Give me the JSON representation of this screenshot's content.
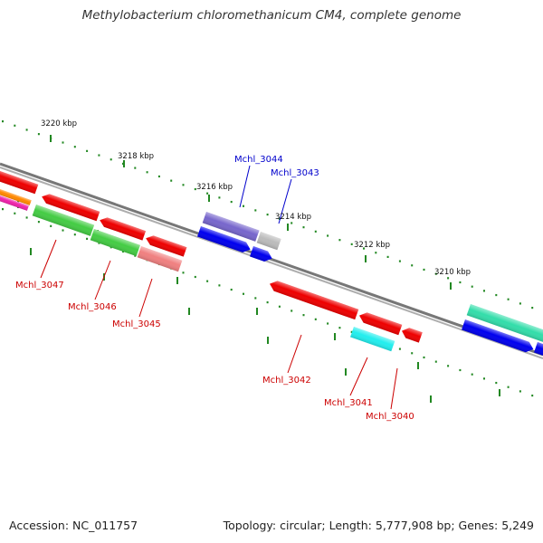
{
  "title": "Methylobacterium chloromethanicum CM4, complete genome",
  "footer": {
    "accession": "Accession: NC_011757",
    "summary": "Topology: circular; Length: 5,777,908 bp; Genes: 5,249"
  },
  "colors": {
    "backbone": "#777777",
    "tick": "#228822",
    "label_forward": "#0000cc",
    "label_reverse": "#cc0000"
  },
  "ticks": [
    {
      "label": "3220 kbp"
    },
    {
      "label": "3218 kbp"
    },
    {
      "label": "3216 kbp"
    },
    {
      "label": "3214 kbp"
    },
    {
      "label": "3212 kbp"
    },
    {
      "label": "3210 kbp"
    }
  ],
  "gene_labels": [
    {
      "text": "Mchl_3044",
      "strand": "forward"
    },
    {
      "text": "Mchl_3043",
      "strand": "forward"
    },
    {
      "text": "Mchl_3047",
      "strand": "reverse"
    },
    {
      "text": "Mchl_3046",
      "strand": "reverse"
    },
    {
      "text": "Mchl_3045",
      "strand": "reverse"
    },
    {
      "text": "Mchl_3042",
      "strand": "reverse"
    },
    {
      "text": "Mchl_3041",
      "strand": "reverse"
    },
    {
      "text": "Mchl_3040",
      "strand": "reverse"
    }
  ],
  "features": [
    {
      "color": "#ee0000",
      "dir": "left"
    },
    {
      "color": "#ff8800",
      "dir": "none"
    },
    {
      "color": "#ee22aa",
      "dir": "none"
    },
    {
      "color": "#ee0000",
      "dir": "left"
    },
    {
      "color": "#ee0000",
      "dir": "left"
    },
    {
      "color": "#ee0000",
      "dir": "left"
    },
    {
      "color": "#44cc44",
      "dir": "none"
    },
    {
      "color": "#44cc44",
      "dir": "none"
    },
    {
      "color": "#f08080",
      "dir": "none"
    },
    {
      "color": "#7766cc",
      "dir": "none"
    },
    {
      "color": "#bbbbbb",
      "dir": "none"
    },
    {
      "color": "#0000ee",
      "dir": "right"
    },
    {
      "color": "#0000ee",
      "dir": "right"
    },
    {
      "color": "#ee0000",
      "dir": "left"
    },
    {
      "color": "#ee0000",
      "dir": "left"
    },
    {
      "color": "#ee0000",
      "dir": "left"
    },
    {
      "color": "#22eeee",
      "dir": "none"
    },
    {
      "color": "#33ddaa",
      "dir": "none"
    },
    {
      "color": "#0000ee",
      "dir": "right"
    },
    {
      "color": "#0000ee",
      "dir": "right"
    }
  ]
}
